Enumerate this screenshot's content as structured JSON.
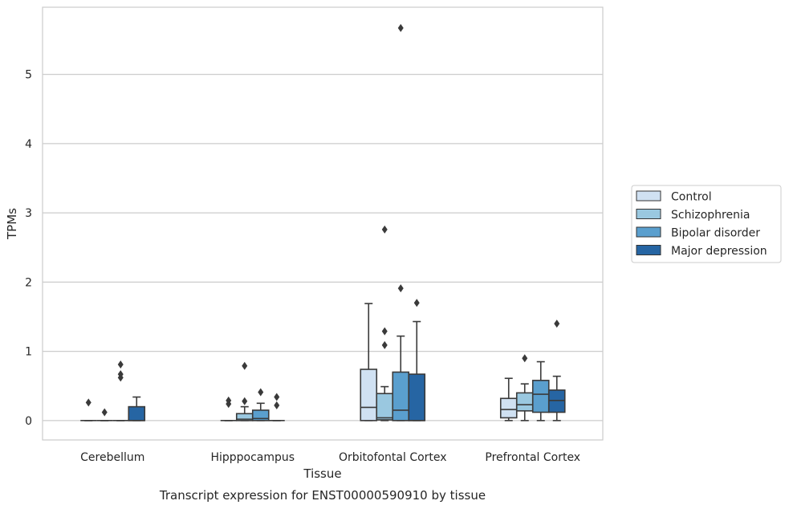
{
  "caption": "Transcript expression for ENST00000590910 by tissue",
  "chart_data": {
    "type": "box",
    "title": "",
    "xlabel": "Tissue",
    "ylabel": "TPMs",
    "ylim": [
      -0.28,
      5.97
    ],
    "yticks": [
      0,
      1,
      2,
      3,
      4,
      5
    ],
    "grid": "horizontal",
    "legend_position": "right",
    "categories": [
      "Cerebellum",
      "Hipppocampus",
      "Orbitofontal Cortex",
      "Prefrontal Cortex"
    ],
    "series": [
      {
        "name": "Control",
        "color": "#d0e1f2",
        "boxes": [
          {
            "whisker_low": 0,
            "q1": 0,
            "median": 0,
            "q3": 0,
            "whisker_high": 0,
            "outliers": [
              0.26
            ]
          },
          {
            "whisker_low": 0,
            "q1": 0,
            "median": 0,
            "q3": 0,
            "whisker_high": 0,
            "outliers": [
              0.24,
              0.29
            ]
          },
          {
            "whisker_low": 0,
            "q1": 0,
            "median": 0.19,
            "q3": 0.74,
            "whisker_high": 1.69,
            "outliers": []
          },
          {
            "whisker_low": 0,
            "q1": 0.04,
            "median": 0.16,
            "q3": 0.32,
            "whisker_high": 0.61,
            "outliers": []
          }
        ]
      },
      {
        "name": "Schizophrenia",
        "color": "#9ac8e0",
        "boxes": [
          {
            "whisker_low": 0,
            "q1": 0,
            "median": 0,
            "q3": 0,
            "whisker_high": 0,
            "outliers": [
              0.12
            ]
          },
          {
            "whisker_low": 0,
            "q1": 0,
            "median": 0.02,
            "q3": 0.1,
            "whisker_high": 0.2,
            "outliers": [
              0.28,
              0.79
            ]
          },
          {
            "whisker_low": 0,
            "q1": 0.01,
            "median": 0.04,
            "q3": 0.39,
            "whisker_high": 0.49,
            "outliers": [
              1.09,
              1.29,
              2.76
            ]
          },
          {
            "whisker_low": 0,
            "q1": 0.14,
            "median": 0.23,
            "q3": 0.4,
            "whisker_high": 0.53,
            "outliers": [
              0.9
            ]
          }
        ]
      },
      {
        "name": "Bipolar disorder",
        "color": "#5a9fce",
        "boxes": [
          {
            "whisker_low": 0,
            "q1": 0,
            "median": 0,
            "q3": 0,
            "whisker_high": 0,
            "outliers": [
              0.62,
              0.67,
              0.81
            ]
          },
          {
            "whisker_low": 0,
            "q1": 0,
            "median": 0.03,
            "q3": 0.15,
            "whisker_high": 0.25,
            "outliers": [
              0.41
            ]
          },
          {
            "whisker_low": 0,
            "q1": 0,
            "median": 0.15,
            "q3": 0.7,
            "whisker_high": 1.22,
            "outliers": [
              1.91,
              5.67
            ]
          },
          {
            "whisker_low": 0,
            "q1": 0.12,
            "median": 0.38,
            "q3": 0.58,
            "whisker_high": 0.85,
            "outliers": []
          }
        ]
      },
      {
        "name": "Major depression",
        "color": "#2665a3",
        "boxes": [
          {
            "whisker_low": 0,
            "q1": 0,
            "median": 0,
            "q3": 0.2,
            "whisker_high": 0.34,
            "outliers": []
          },
          {
            "whisker_low": 0,
            "q1": 0,
            "median": 0,
            "q3": 0,
            "whisker_high": 0,
            "outliers": [
              0.22,
              0.34
            ]
          },
          {
            "whisker_low": 0,
            "q1": 0,
            "median": 0,
            "q3": 0.67,
            "whisker_high": 1.43,
            "outliers": [
              1.7
            ]
          },
          {
            "whisker_low": 0,
            "q1": 0.12,
            "median": 0.29,
            "q3": 0.44,
            "whisker_high": 0.64,
            "outliers": [
              1.4
            ]
          }
        ]
      }
    ]
  }
}
